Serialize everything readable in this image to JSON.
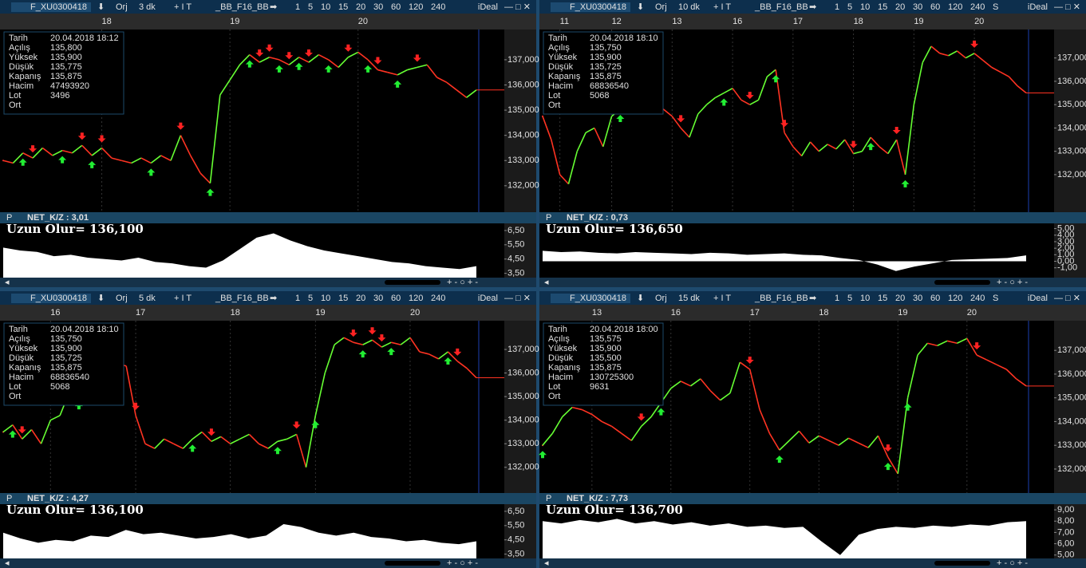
{
  "panels": [
    {
      "symbol": "F_XU0300418",
      "period": "Orj",
      "interval": "3 dk",
      "template": "_BB_F16_BB",
      "zoom": [
        "1",
        "5",
        "10",
        "15",
        "20",
        "30",
        "60",
        "120",
        "240"
      ],
      "brand": "iDeal",
      "dates": [
        {
          "value": 10,
          "label": "18"
        },
        {
          "value": 23,
          "label": "19"
        },
        {
          "value": 36,
          "label": "20"
        }
      ],
      "info": [
        {
          "label": "Tarih",
          "value": "20.04.2018 18:12"
        },
        {
          "label": "Açılış",
          "value": "135,800"
        },
        {
          "label": "Yüksek",
          "value": "135,900",
          "color": "#33ff33"
        },
        {
          "label": "Düşük",
          "value": "135,775",
          "color": "#ff3333"
        },
        {
          "label": "Kapanış",
          "value": "135,875"
        },
        {
          "label": "Hacim",
          "value": "47493920"
        },
        {
          "label": "Lot",
          "value": "3496"
        },
        {
          "label": "Ort"
        }
      ],
      "price": {
        "ylim": [
          130950,
          138200
        ],
        "yticks": [
          {
            "value": 132000,
            "label": "132,000"
          },
          {
            "value": 133000,
            "label": "133,000"
          },
          {
            "value": 134000,
            "label": "134,000"
          },
          {
            "value": 135000,
            "label": "135,000"
          },
          {
            "value": 136000,
            "label": "136,000"
          },
          {
            "value": 137000,
            "label": "137,000"
          }
        ],
        "values": [
          133000,
          132900,
          133300,
          133100,
          133500,
          133200,
          133400,
          133300,
          133600,
          133200,
          133500,
          133100,
          133000,
          132900,
          133100,
          132900,
          133200,
          133000,
          134000,
          133200,
          132500,
          132100,
          135600,
          136200,
          136800,
          137200,
          136900,
          137100,
          137000,
          136800,
          137100,
          136900,
          137200,
          137000,
          136700,
          137100,
          137300,
          137000,
          136600,
          136500,
          136400,
          136600,
          136700,
          136800,
          136300,
          136100,
          135800,
          135500,
          135800
        ],
        "buy": [
          2,
          6,
          9,
          15,
          21,
          25,
          28,
          30,
          33,
          37,
          40
        ],
        "sell": [
          3,
          8,
          10,
          18,
          26,
          27,
          29,
          31,
          35,
          38,
          42
        ]
      },
      "indicator": {
        "p": "P",
        "title": "NET_K/Z : 3,01",
        "overlay": "Uzun Olur= 136,100",
        "ylim": [
          3.2,
          7.0
        ],
        "yticks": [
          {
            "value": 3.5,
            "label": "3,50"
          },
          {
            "value": 4.5,
            "label": "4,50"
          },
          {
            "value": 5.5,
            "label": "5,50"
          },
          {
            "value": 6.5,
            "label": "6,50"
          }
        ],
        "values": [
          5.3,
          5.1,
          5.0,
          4.7,
          4.8,
          4.6,
          4.5,
          4.4,
          4.6,
          4.3,
          4.2,
          4.0,
          3.9,
          4.4,
          5.2,
          6.0,
          6.3,
          5.8,
          5.4,
          5.1,
          4.9,
          4.7,
          4.5,
          4.3,
          4.2,
          4.0,
          3.9,
          3.8,
          4.0
        ]
      }
    },
    {
      "symbol": "F_XU0300418",
      "period": "Orj",
      "interval": "10 dk",
      "template": "_BB_F16_BB",
      "zoom": [
        "1",
        "5",
        "10",
        "15",
        "20",
        "30",
        "60",
        "120",
        "240",
        "S"
      ],
      "highlight": 2,
      "brand": "iDeal",
      "dates": [
        {
          "value": 2,
          "label": "11"
        },
        {
          "value": 8,
          "label": "12"
        },
        {
          "value": 15,
          "label": "13"
        },
        {
          "value": 22,
          "label": "16"
        },
        {
          "value": 29,
          "label": "17"
        },
        {
          "value": 36,
          "label": "18"
        },
        {
          "value": 43,
          "label": "19"
        },
        {
          "value": 50,
          "label": "20"
        }
      ],
      "info": [
        {
          "label": "Tarih",
          "value": "20.04.2018 18:10"
        },
        {
          "label": "Açılış",
          "value": "135,750"
        },
        {
          "label": "Yüksek",
          "value": "135,900",
          "color": "#33ff33"
        },
        {
          "label": "Düşük",
          "value": "135,725",
          "color": "#ff3333"
        },
        {
          "label": "Kapanış",
          "value": "135,875"
        },
        {
          "label": "Hacim",
          "value": "68836540"
        },
        {
          "label": "Lot",
          "value": "5068"
        },
        {
          "label": "Ort"
        }
      ],
      "price": {
        "ylim": [
          130390,
          138220
        ],
        "yticks": [
          {
            "value": 132000,
            "label": "132,000"
          },
          {
            "value": 133000,
            "label": "133,000"
          },
          {
            "value": 134000,
            "label": "134,000"
          },
          {
            "value": 135000,
            "label": "135,000"
          },
          {
            "value": 136000,
            "label": "136,000"
          },
          {
            "value": 137000,
            "label": "137,000"
          }
        ],
        "values": [
          134500,
          133500,
          132000,
          131600,
          133000,
          133800,
          134000,
          133200,
          134500,
          134800,
          135000,
          135300,
          135500,
          135200,
          134800,
          134500,
          134000,
          133600,
          134600,
          135000,
          135300,
          135500,
          135700,
          135200,
          135000,
          135200,
          136200,
          136500,
          133800,
          133200,
          132800,
          133400,
          133000,
          133300,
          133100,
          133500,
          132900,
          133000,
          133600,
          133200,
          132900,
          133500,
          132000,
          135000,
          136800,
          137500,
          137200,
          137100,
          137300,
          137000,
          137200,
          136900,
          136600,
          136400,
          136200,
          135800,
          135500
        ],
        "buy": [
          9,
          21,
          27,
          38,
          42
        ],
        "sell": [
          16,
          24,
          28,
          36,
          41,
          50
        ]
      },
      "indicator": {
        "p": "P",
        "title": "NET_K/Z : 0,73",
        "overlay": "Uzun Olur= 136,650",
        "ylim": [
          -2.5,
          5.8
        ],
        "yticks": [
          {
            "value": -1,
            "label": "-1,00"
          },
          {
            "value": 0,
            "label": "0,00"
          },
          {
            "value": 1,
            "label": "1,00"
          },
          {
            "value": 2,
            "label": "2,00"
          },
          {
            "value": 3,
            "label": "3,00"
          },
          {
            "value": 4,
            "label": "4,00"
          },
          {
            "value": 5,
            "label": "5,00"
          }
        ],
        "values": [
          1.6,
          1.4,
          1.5,
          1.3,
          1.2,
          1.4,
          1.3,
          1.2,
          1.1,
          1.3,
          1.2,
          1.0,
          1.1,
          1.2,
          1.0,
          0.9,
          0.5,
          0.2,
          -0.5,
          -1.5,
          -0.8,
          -0.3,
          0.2,
          0.3,
          0.4,
          0.5,
          0.9
        ]
      }
    },
    {
      "symbol": "F_XU0300418",
      "period": "Orj",
      "interval": "5 dk",
      "template": "_BB_F16_BB",
      "zoom": [
        "1",
        "5",
        "10",
        "15",
        "20",
        "30",
        "60",
        "120",
        "240"
      ],
      "highlight": 1,
      "brand": "iDeal",
      "dates": [
        {
          "value": 5,
          "label": "16"
        },
        {
          "value": 14,
          "label": "17"
        },
        {
          "value": 24,
          "label": "18"
        },
        {
          "value": 33,
          "label": "19"
        },
        {
          "value": 43,
          "label": "20"
        }
      ],
      "info": [
        {
          "label": "Tarih",
          "value": "20.04.2018 18:10"
        },
        {
          "label": "Açılış",
          "value": "135,750"
        },
        {
          "label": "Yüksek",
          "value": "135,900",
          "color": "#33ff33"
        },
        {
          "label": "Düşük",
          "value": "135,725",
          "color": "#ff3333"
        },
        {
          "label": "Kapanış",
          "value": "135,875"
        },
        {
          "label": "Hacim",
          "value": "68836540"
        },
        {
          "label": "Lot",
          "value": "5068"
        },
        {
          "label": "Ort"
        }
      ],
      "price": {
        "ylim": [
          130910,
          138220
        ],
        "yticks": [
          {
            "value": 132000,
            "label": "132,000"
          },
          {
            "value": 133000,
            "label": "133,000"
          },
          {
            "value": 134000,
            "label": "134,000"
          },
          {
            "value": 135000,
            "label": "135,000"
          },
          {
            "value": 136000,
            "label": "136,000"
          },
          {
            "value": 137000,
            "label": "137,000"
          }
        ],
        "values": [
          133500,
          133800,
          133200,
          133600,
          133000,
          134000,
          134200,
          135200,
          135000,
          135300,
          134800,
          135200,
          136400,
          136300,
          134200,
          133000,
          132800,
          133200,
          133000,
          132800,
          133200,
          133500,
          133100,
          133300,
          133000,
          133200,
          133400,
          133000,
          132800,
          133100,
          133200,
          133400,
          132000,
          134200,
          136000,
          137200,
          137500,
          137300,
          137200,
          137400,
          137100,
          137300,
          137200,
          137500,
          136900,
          136800,
          136600,
          136900,
          136500,
          136200,
          135800
        ],
        "buy": [
          1,
          8,
          12,
          20,
          29,
          33,
          38,
          41,
          47
        ],
        "sell": [
          2,
          14,
          22,
          31,
          37,
          39,
          40,
          48
        ]
      },
      "indicator": {
        "p": "P",
        "title": "NET_K/Z : 4,27",
        "overlay": "Uzun Olur= 136,100",
        "ylim": [
          3.2,
          7.0
        ],
        "yticks": [
          {
            "value": 3.5,
            "label": "3,50"
          },
          {
            "value": 4.5,
            "label": "4,50"
          },
          {
            "value": 5.5,
            "label": "5,50"
          },
          {
            "value": 6.5,
            "label": "6,50"
          }
        ],
        "values": [
          5.0,
          4.6,
          4.3,
          4.5,
          4.4,
          4.8,
          4.7,
          5.2,
          4.9,
          5.0,
          4.8,
          4.6,
          4.7,
          4.9,
          4.6,
          4.8,
          5.6,
          5.4,
          5.0,
          4.8,
          5.0,
          4.7,
          4.6,
          4.4,
          4.5,
          4.3,
          4.2,
          4.4
        ]
      }
    },
    {
      "symbol": "F_XU0300418",
      "period": "Orj",
      "interval": "15 dk",
      "template": "_BB_F16_BB",
      "zoom": [
        "1",
        "5",
        "10",
        "15",
        "20",
        "30",
        "60",
        "120",
        "240",
        "S"
      ],
      "highlight": 3,
      "brand": "iDeal",
      "dates": [
        {
          "value": 5,
          "label": "13"
        },
        {
          "value": 13,
          "label": "16"
        },
        {
          "value": 21,
          "label": "17"
        },
        {
          "value": 28,
          "label": "18"
        },
        {
          "value": 36,
          "label": "19"
        },
        {
          "value": 43,
          "label": "20"
        }
      ],
      "info": [
        {
          "label": "Tarih",
          "value": "20.04.2018 18:00"
        },
        {
          "label": "Açılış",
          "value": "135,575"
        },
        {
          "label": "Yüksek",
          "value": "135,900",
          "color": "#33ff33"
        },
        {
          "label": "Düşük",
          "value": "135,500",
          "color": "#ff3333"
        },
        {
          "label": "Kapanış",
          "value": "135,875"
        },
        {
          "label": "Hacim",
          "value": "130725300"
        },
        {
          "label": "Lot",
          "value": "9631"
        },
        {
          "label": "Ort"
        }
      ],
      "price": {
        "ylim": [
          130990,
          138250
        ],
        "yticks": [
          {
            "value": 132000,
            "label": "132,000"
          },
          {
            "value": 133000,
            "label": "133,000"
          },
          {
            "value": 134000,
            "label": "134,000"
          },
          {
            "value": 135000,
            "label": "135,000"
          },
          {
            "value": 136000,
            "label": "136,000"
          },
          {
            "value": 137000,
            "label": "137,000"
          }
        ],
        "values": [
          133000,
          133500,
          134200,
          134600,
          134500,
          134300,
          134000,
          133800,
          133500,
          133200,
          133800,
          134200,
          134800,
          135400,
          135700,
          135500,
          135800,
          135300,
          134900,
          135200,
          136500,
          136200,
          134500,
          133500,
          132800,
          133200,
          133600,
          133100,
          133400,
          133200,
          133000,
          133300,
          133100,
          132900,
          133400,
          132500,
          131800,
          135000,
          136800,
          137300,
          137200,
          137400,
          137300,
          137500,
          136800,
          136600,
          136400,
          136200,
          135800,
          135500
        ],
        "buy": [
          0,
          12,
          24,
          35,
          37
        ],
        "sell": [
          10,
          21,
          35,
          44
        ]
      },
      "indicator": {
        "p": "P",
        "title": "NET_K/Z : 7,73",
        "overlay": "Uzun Olur= 136,700",
        "ylim": [
          4.7,
          9.5
        ],
        "yticks": [
          {
            "value": 5,
            "label": "5,00"
          },
          {
            "value": 6,
            "label": "6,00"
          },
          {
            "value": 7,
            "label": "7,00"
          },
          {
            "value": 8,
            "label": "8,00"
          },
          {
            "value": 9,
            "label": "9,00"
          }
        ],
        "values": [
          8.0,
          7.8,
          8.1,
          7.9,
          8.2,
          7.8,
          8.0,
          7.7,
          7.9,
          7.6,
          7.8,
          7.5,
          7.6,
          7.4,
          7.5,
          6.2,
          5.0,
          6.8,
          7.3,
          7.5,
          7.4,
          7.6,
          7.5,
          7.7,
          7.6,
          7.9,
          8.0
        ]
      }
    }
  ]
}
